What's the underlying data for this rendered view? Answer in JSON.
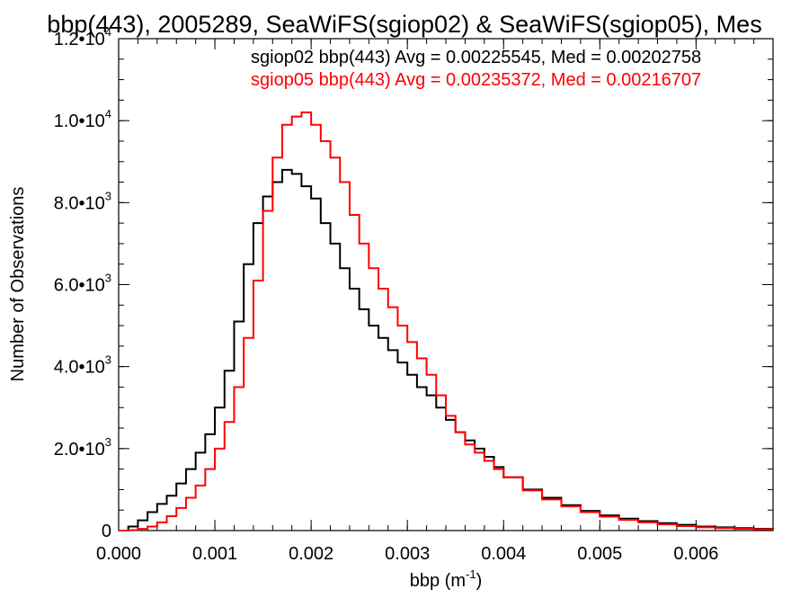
{
  "chart_data": {
    "type": "line",
    "title": "bbp(443), 2005289, SeaWiFS(sgiop02) & SeaWiFS(sgiop05), Mes",
    "xlabel_base": "bbp (m",
    "xlabel_exp": "-1",
    "xlabel_close": ")",
    "ylabel": "Number of Observations",
    "xlim": [
      0.0,
      0.0068
    ],
    "ylim": [
      0,
      12000
    ],
    "x_ticks": [
      {
        "value": 0.0,
        "label": "0.000"
      },
      {
        "value": 0.001,
        "label": "0.001"
      },
      {
        "value": 0.002,
        "label": "0.002"
      },
      {
        "value": 0.003,
        "label": "0.003"
      },
      {
        "value": 0.004,
        "label": "0.004"
      },
      {
        "value": 0.005,
        "label": "0.005"
      },
      {
        "value": 0.006,
        "label": "0.006"
      }
    ],
    "y_ticks": [
      {
        "value": 0,
        "mant": "0",
        "exp": ""
      },
      {
        "value": 2000,
        "mant": "2.0•10",
        "exp": "3"
      },
      {
        "value": 4000,
        "mant": "4.0•10",
        "exp": "3"
      },
      {
        "value": 6000,
        "mant": "6.0•10",
        "exp": "3"
      },
      {
        "value": 8000,
        "mant": "8.0•10",
        "exp": "3"
      },
      {
        "value": 10000,
        "mant": "1.0•10",
        "exp": "4"
      },
      {
        "value": 12000,
        "mant": "1.2•10",
        "exp": "4"
      }
    ],
    "grid": false,
    "legend_position": "top-right",
    "series": [
      {
        "name": "sgiop02 bbp(443) Avg = 0.00225545, Med = 0.00202758",
        "color": "#000000",
        "x": [
          0.0,
          0.0001,
          0.0002,
          0.0003,
          0.0004,
          0.0005,
          0.0006,
          0.0007,
          0.0008,
          0.0009,
          0.001,
          0.0011,
          0.0012,
          0.0013,
          0.0014,
          0.0015,
          0.0016,
          0.0017,
          0.0018,
          0.0019,
          0.002,
          0.0021,
          0.0022,
          0.0023,
          0.0024,
          0.0025,
          0.0026,
          0.0027,
          0.0028,
          0.0029,
          0.003,
          0.0031,
          0.0032,
          0.0033,
          0.0034,
          0.0035,
          0.0036,
          0.0037,
          0.0038,
          0.0039,
          0.004,
          0.0042,
          0.0044,
          0.0046,
          0.0048,
          0.005,
          0.0052,
          0.0054,
          0.0056,
          0.0058,
          0.006,
          0.0062,
          0.0064,
          0.0066,
          0.0068
        ],
        "values": [
          0,
          100,
          250,
          450,
          650,
          850,
          1150,
          1500,
          1900,
          2350,
          3000,
          3900,
          5100,
          6500,
          7500,
          8150,
          8500,
          8800,
          8700,
          8400,
          8100,
          7500,
          7000,
          6400,
          5900,
          5400,
          5000,
          4700,
          4400,
          4100,
          3800,
          3500,
          3300,
          3000,
          2700,
          2400,
          2200,
          2000,
          1800,
          1550,
          1300,
          1000,
          800,
          620,
          480,
          370,
          290,
          230,
          180,
          140,
          100,
          80,
          60,
          45,
          30
        ]
      },
      {
        "name": "sgiop05 bbp(443) Avg = 0.00235372, Med = 0.00216707",
        "color": "#ff0000",
        "x": [
          0.0,
          0.0001,
          0.0002,
          0.0003,
          0.0004,
          0.0005,
          0.0006,
          0.0007,
          0.0008,
          0.0009,
          0.001,
          0.0011,
          0.0012,
          0.0013,
          0.0014,
          0.0015,
          0.0016,
          0.0017,
          0.0018,
          0.0019,
          0.002,
          0.0021,
          0.0022,
          0.0023,
          0.0024,
          0.0025,
          0.0026,
          0.0027,
          0.0028,
          0.0029,
          0.003,
          0.0031,
          0.0032,
          0.0033,
          0.0034,
          0.0035,
          0.0036,
          0.0037,
          0.0038,
          0.0039,
          0.004,
          0.0042,
          0.0044,
          0.0046,
          0.0048,
          0.005,
          0.0052,
          0.0054,
          0.0056,
          0.0058,
          0.006,
          0.0062,
          0.0064,
          0.0066,
          0.0068
        ],
        "values": [
          0,
          10,
          40,
          100,
          200,
          350,
          550,
          800,
          1100,
          1500,
          2000,
          2650,
          3500,
          4700,
          6100,
          7800,
          9100,
          9900,
          10100,
          10200,
          9900,
          9500,
          9100,
          8500,
          7700,
          7000,
          6400,
          5900,
          5450,
          5000,
          4600,
          4200,
          3800,
          3300,
          2800,
          2400,
          2100,
          1900,
          1700,
          1500,
          1300,
          980,
          760,
          590,
          450,
          340,
          260,
          200,
          150,
          110,
          80,
          60,
          45,
          32,
          20
        ]
      }
    ]
  }
}
